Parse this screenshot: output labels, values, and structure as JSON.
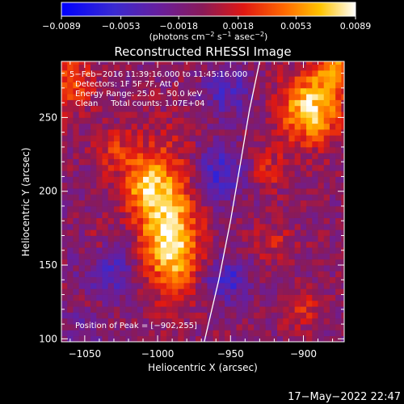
{
  "chart_data": {
    "type": "heatmap",
    "title": "Reconstructed RHESSI Image",
    "xlabel": "Heliocentric X (arcsec)",
    "ylabel": "Heliocentric Y (arcsec)",
    "xlim": [
      -1066,
      -872
    ],
    "ylim": [
      98,
      288
    ],
    "x_ticks": [
      -1050,
      -1000,
      -950,
      -900
    ],
    "x_tick_labels": [
      "−1050",
      "−1000",
      "−950",
      "−900"
    ],
    "y_ticks": [
      100,
      150,
      200,
      250
    ],
    "y_tick_labels": [
      "100",
      "150",
      "200",
      "250"
    ],
    "colorbar": {
      "min": -0.0089,
      "max": 0.0089,
      "ticks": [
        -0.0089,
        -0.0053,
        -0.0018,
        0.0018,
        0.0053,
        0.0089
      ],
      "tick_labels": [
        "−0.0089",
        "−0.0053",
        "−0.0018",
        "0.0018",
        "0.0053",
        "0.0089"
      ],
      "unit_parts": [
        "(photons cm",
        "−2",
        " s",
        "−1",
        " asec",
        "−2",
        ")"
      ],
      "colormap": "blue-purple-red-yellow-white"
    },
    "annotations": [
      "5−Feb−2016 11:39:16.000 to 11:45:16.000",
      "Detectors: 1F 5F 7F, Att 0",
      "Energy Range: 25.0 − 50.0 keV",
      "Clean     Total counts: 1.07E+04"
    ],
    "peak_label": "Position of Peak = [−902,255]",
    "peak": [
      -902,
      255
    ],
    "limb_points": [
      [
        -968,
        98
      ],
      [
        -958,
        140
      ],
      [
        -950,
        180
      ],
      [
        -943,
        220
      ],
      [
        -937,
        255
      ],
      [
        -930,
        288
      ]
    ],
    "sources": [
      {
        "x": -996,
        "y": 192,
        "sx": 16,
        "sy": 28,
        "amp": 0.0068
      },
      {
        "x": -990,
        "y": 157,
        "sx": 12,
        "sy": 20,
        "amp": 0.0058
      },
      {
        "x": -1010,
        "y": 205,
        "sx": 10,
        "sy": 10,
        "amp": 0.004
      },
      {
        "x": -895,
        "y": 256,
        "sx": 14,
        "sy": 16,
        "amp": 0.0086
      },
      {
        "x": -878,
        "y": 283,
        "sx": 10,
        "sy": 10,
        "amp": 0.006
      },
      {
        "x": -1060,
        "y": 275,
        "sx": 12,
        "sy": 14,
        "amp": 0.0042
      },
      {
        "x": -1028,
        "y": 227,
        "sx": 10,
        "sy": 10,
        "amp": 0.003
      },
      {
        "x": -1040,
        "y": 165,
        "sx": 8,
        "sy": 12,
        "amp": 0.0025
      },
      {
        "x": -925,
        "y": 215,
        "sx": 10,
        "sy": 10,
        "amp": 0.0028
      },
      {
        "x": -920,
        "y": 165,
        "sx": 10,
        "sy": 10,
        "amp": 0.0024
      },
      {
        "x": -900,
        "y": 120,
        "sx": 10,
        "sy": 8,
        "amp": 0.003
      },
      {
        "x": -1046,
        "y": 118,
        "sx": 10,
        "sy": 10,
        "amp": 0.0022
      },
      {
        "x": -958,
        "y": 212,
        "sx": 14,
        "sy": 14,
        "amp": -0.0045
      },
      {
        "x": -952,
        "y": 268,
        "sx": 12,
        "sy": 12,
        "amp": -0.0035
      },
      {
        "x": -1033,
        "y": 150,
        "sx": 14,
        "sy": 18,
        "amp": -0.004
      },
      {
        "x": -952,
        "y": 140,
        "sx": 10,
        "sy": 10,
        "amp": -0.0045
      },
      {
        "x": -1050,
        "y": 110,
        "sx": 10,
        "sy": 10,
        "amp": -0.003
      }
    ],
    "baseline": -0.0008
  },
  "footer": {
    "timestamp": "17−May−2022 22:47"
  }
}
